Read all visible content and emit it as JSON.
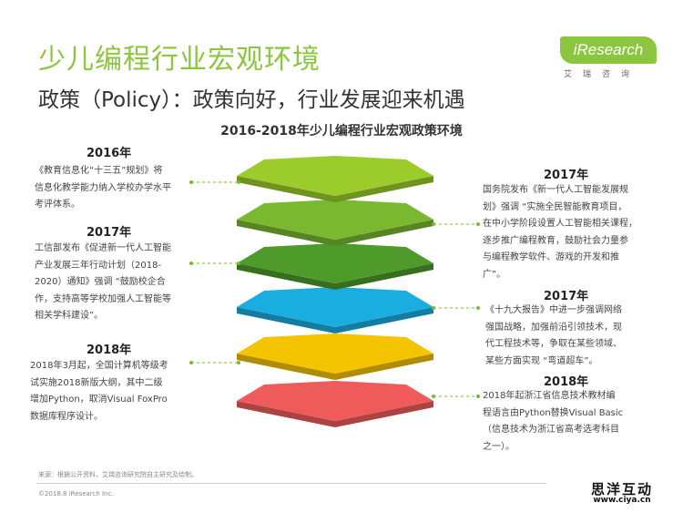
{
  "header": {
    "title": "少儿编程行业宏观环境",
    "subtitle": "政策（Policy）：政策向好，行业发展迎来机遇"
  },
  "logo": {
    "text": "iResearch",
    "cn": "艾瑞咨询"
  },
  "chart_title": "2016-2018年少儿编程行业宏观政策环境",
  "left_items": [
    {
      "year": "2016年",
      "text": "《教育信息化“十三五”规划》将\n信息化教学能力纳入学校办学水平\n考评体系。"
    },
    {
      "year": "2017年",
      "text": "工信部发布《促进新一代人工智能\n产业发展三年行动计划（2018-\n2020）通知》强调 “鼓励校企合\n作，支持高等学校加强人工智能等\n相关学科建设”。"
    },
    {
      "year": "2018年",
      "text": "2018年3月起，全国计算机等级考\n试实施2018新版大纲，其中二级\n增加Python，取消Visual FoxPro\n数据库程序设计。"
    }
  ],
  "right_items": [
    {
      "year": "2017年",
      "text": "国务院发布《新一代人工智能发展规\n划》强调 “实施全民智能教育项目，\n在中小学阶段设置人工智能相关课程，\n逐步推广编程教育，鼓励社会力量参\n与编程教学软件、游戏的开发和推\n广”。"
    },
    {
      "year": "2017年",
      "text": "《十九大报告》中进一步强调网络\n强国战略，加强前沿引领技术，现\n代工程技术等，争取在某些领域、\n某些方面实现 “弯道超车”。"
    },
    {
      "year": "2018年",
      "text": "2018年起浙江省信息技术教材编\n程语言由Python替换Visual Basic\n（信息技术为浙江省高考选考科目\n之一）。"
    }
  ],
  "layer_colors": [
    "#9ccc2c",
    "#7ab830",
    "#4e9a2a",
    "#1aaee0",
    "#f5c400",
    "#ef5b5b"
  ],
  "footer": {
    "source": "来源：根据公开资料，艾瑞咨询研究院自主研究及绘制。",
    "copyright": "©2018.8  iResearch Inc."
  },
  "watermark": {
    "cn": "思洋互动",
    "url": "www.ciya.cn"
  }
}
